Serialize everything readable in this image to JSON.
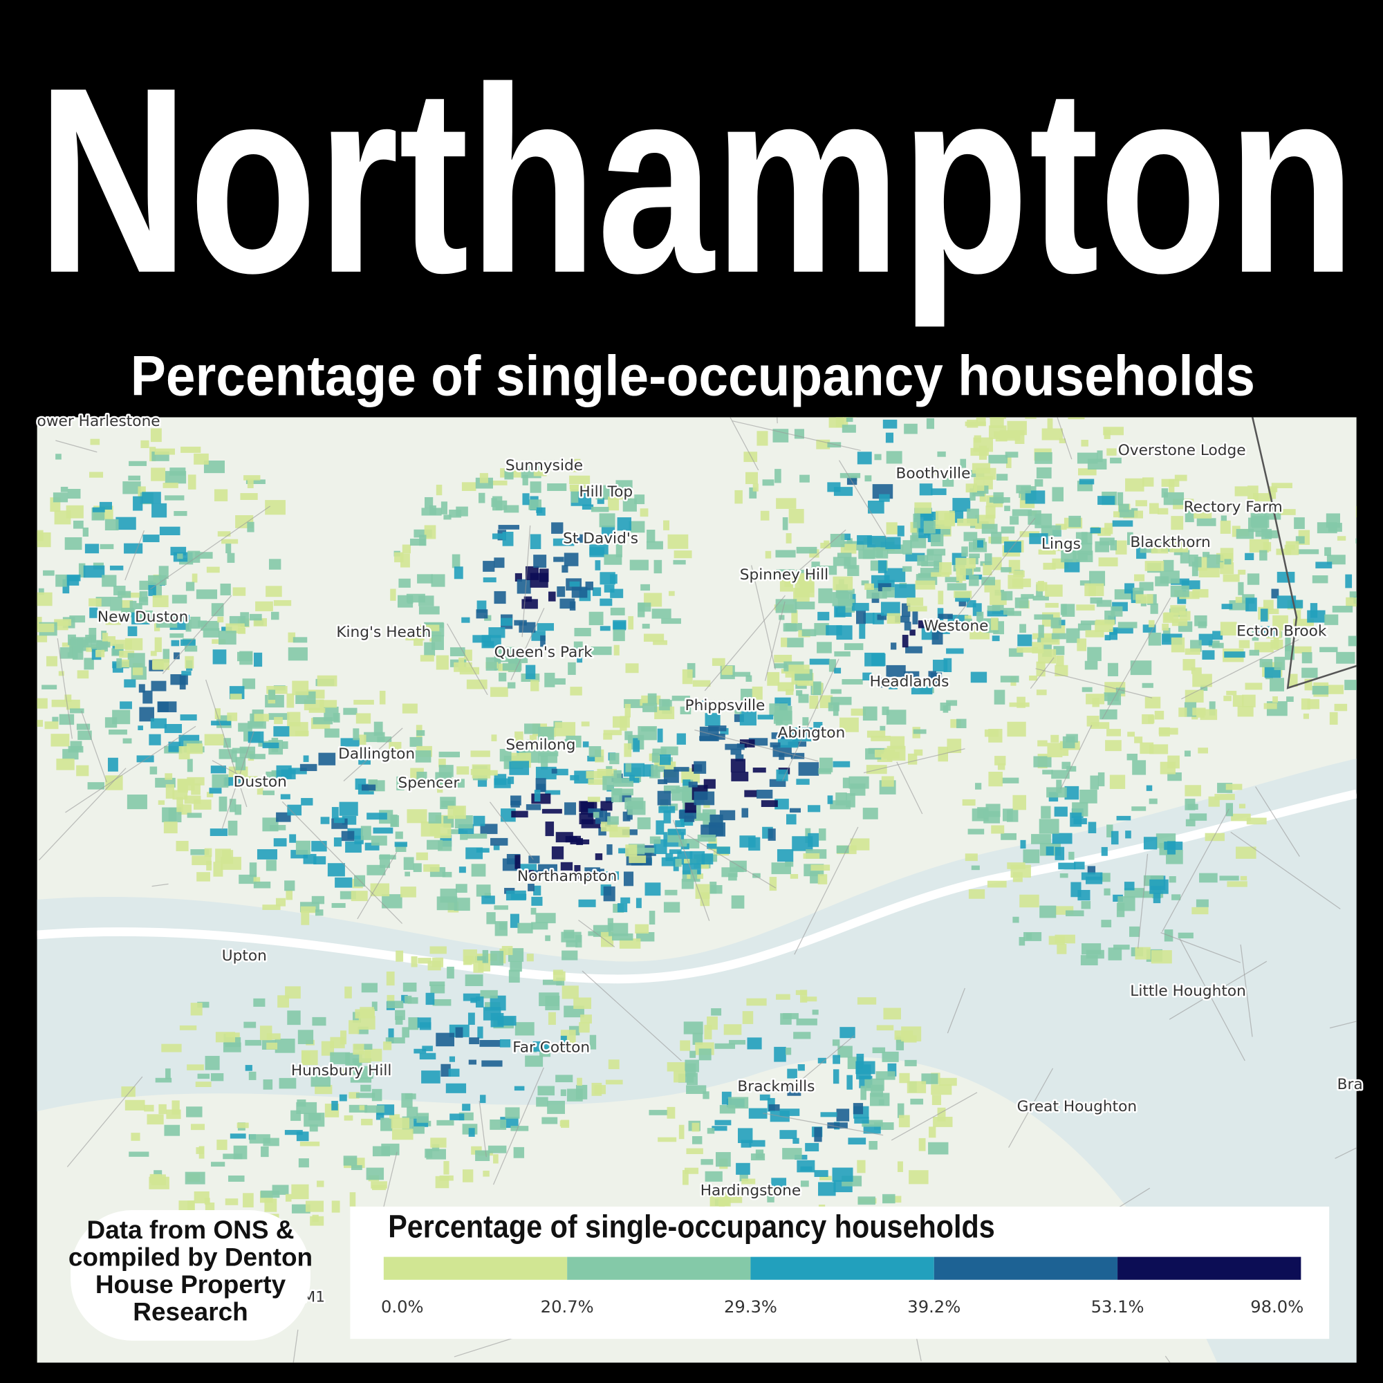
{
  "header": {
    "title": "Northampton",
    "subtitle": "Percentage of single-occupancy households"
  },
  "map": {
    "places": [
      "ower Harlestone",
      "Sunnyside",
      "Hill Top",
      "St David's",
      "Boothville",
      "Overstone Lodge",
      "Rectory Farm",
      "Lings",
      "Blackthorn",
      "Spinney Hill",
      "New Duston",
      "King's Heath",
      "Westone",
      "Ecton Brook",
      "Queen's Park",
      "Headlands",
      "Phippsville",
      "Abington",
      "Semilong",
      "Dallington",
      "Duston",
      "Spencer",
      "Northampton",
      "Upton",
      "Little Houghton",
      "Far Cotton",
      "Hunsbury Hill",
      "Brackmills",
      "Great Houghton",
      "Bra",
      "Hardingstone",
      "M1"
    ]
  },
  "legend": {
    "title": "Percentage of single-occupancy households",
    "colors": [
      "#d1e693",
      "#84c9a8",
      "#22a0bd",
      "#1d6294",
      "#0c0d55"
    ],
    "labels": [
      "0.0%",
      "20.7%",
      "29.3%",
      "39.2%",
      "53.1%",
      "98.0%"
    ]
  },
  "source": {
    "lines": [
      "Data from ONS &",
      "compiled by Denton",
      "House Property",
      "Research"
    ]
  }
}
